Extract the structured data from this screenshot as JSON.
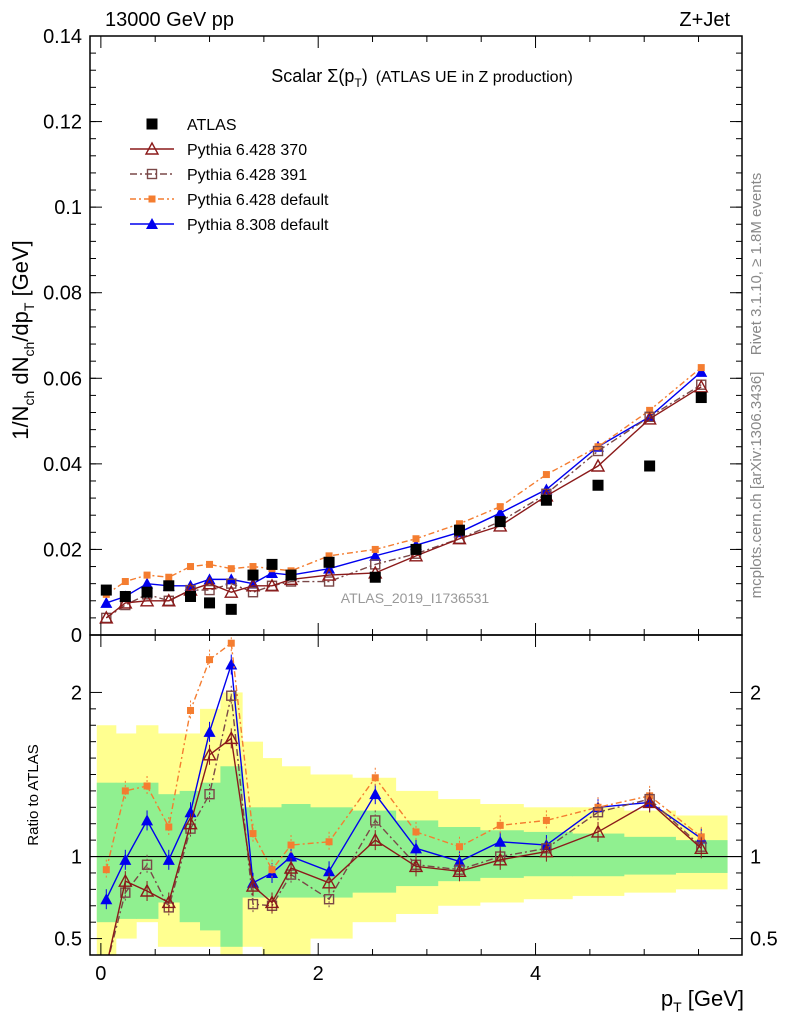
{
  "header": {
    "left": "13000 GeV pp",
    "right": "Z+Jet"
  },
  "side": {
    "rivet": "Rivet 3.1.10, ≥ 1.8M events",
    "mcplots": "mcplots.cern.ch [arXiv:1306.3436]"
  },
  "title": {
    "main": "Scalar Σ(p",
    "sub": "T",
    "close": ")",
    "rest": "(ATLAS UE in Z production)"
  },
  "watermark": "ATLAS_2019_I1736531",
  "colors": {
    "data": "#000000",
    "p370": "#8b1a1a",
    "p391": "#7a4848",
    "p6def": "#f47d30",
    "p8def": "#0000ee",
    "band_inner": "#90f090",
    "band_outer": "#ffff90"
  },
  "chart_data": {
    "type": "line",
    "x": [
      0.05,
      0.225,
      0.425,
      0.625,
      0.825,
      1.0,
      1.2,
      1.4,
      1.575,
      1.75,
      2.1,
      2.525,
      2.9,
      3.3,
      3.675,
      4.1,
      4.575,
      5.05,
      5.525
    ],
    "x_axis": {
      "label_main": "p",
      "label_sub": "T",
      "label_unit": " [GeV]",
      "range": [
        -0.1,
        5.9
      ],
      "major_ticks": [
        0,
        2,
        4
      ],
      "tick_labels": [
        "0",
        "2",
        "4"
      ]
    },
    "main_panel": {
      "y_label": "1/N_ch dN_ch/dp_T [GeV]",
      "y_label_parts": {
        "a": "1/N",
        "b": "ch",
        "c": " dN",
        "d": "ch",
        "e": "/dp",
        "f": "T",
        "g": " [GeV]"
      },
      "y_range": [
        0,
        0.14
      ],
      "y_ticks": [
        0,
        0.02,
        0.04,
        0.06,
        0.08,
        0.1,
        0.12,
        0.14
      ],
      "y_tick_labels": [
        "0",
        "0.02",
        "0.04",
        "0.06",
        "0.08",
        "0.1",
        "0.12",
        "0.14"
      ],
      "series": [
        {
          "name": "ATLAS",
          "key": "data",
          "marker": "square-filled",
          "values": [
            0.0105,
            0.009,
            0.01,
            0.0115,
            0.009,
            0.0075,
            0.006,
            0.014,
            0.0165,
            0.014,
            0.017,
            0.0135,
            0.02,
            0.0245,
            0.0265,
            0.0315,
            0.035,
            0.0395,
            0.0555
          ]
        },
        {
          "name": "Pythia 6.428 370",
          "key": "p370",
          "marker": "triangle-open",
          "dash": "",
          "values": [
            0.004,
            0.0075,
            0.008,
            0.008,
            0.0105,
            0.012,
            0.01,
            0.0115,
            0.0115,
            0.013,
            0.014,
            0.0145,
            0.0185,
            0.0225,
            0.0255,
            0.0325,
            0.0395,
            0.0505,
            0.058
          ]
        },
        {
          "name": "Pythia 6.428 391",
          "key": "p391",
          "marker": "square-open",
          "dash": "7,3,2,3",
          "values": [
            0.004,
            0.007,
            0.0095,
            0.008,
            0.0105,
            0.0105,
            0.012,
            0.01,
            0.0115,
            0.0125,
            0.0125,
            0.0165,
            0.019,
            0.0225,
            0.0265,
            0.033,
            0.043,
            0.051,
            0.0585
          ]
        },
        {
          "name": "Pythia 6.428 default",
          "key": "p6def",
          "marker": "square-small-filled",
          "dash": "6,3,2,3",
          "values": [
            0.0095,
            0.0125,
            0.014,
            0.0135,
            0.016,
            0.0165,
            0.0155,
            0.016,
            0.0155,
            0.015,
            0.0185,
            0.02,
            0.0225,
            0.026,
            0.03,
            0.0375,
            0.044,
            0.0525,
            0.0625
          ]
        },
        {
          "name": "Pythia 8.308 default",
          "key": "p8def",
          "marker": "triangle-filled",
          "dash": "",
          "values": [
            0.0075,
            0.009,
            0.012,
            0.0115,
            0.0115,
            0.013,
            0.013,
            0.012,
            0.0145,
            0.014,
            0.0155,
            0.0185,
            0.021,
            0.024,
            0.0285,
            0.034,
            0.044,
            0.051,
            0.0615
          ]
        }
      ]
    },
    "ratio_panel": {
      "y_label": "Ratio to ATLAS",
      "y_range": [
        0.4,
        2.35
      ],
      "y_ticks": [
        0.5,
        1,
        2
      ],
      "y_tick_labels": [
        "0.5",
        "1",
        "2"
      ],
      "band_inner": [
        [
          0.6,
          1.45
        ],
        [
          0.62,
          1.45
        ],
        [
          0.62,
          1.45
        ],
        [
          0.72,
          1.38
        ],
        [
          0.6,
          1.4
        ],
        [
          0.55,
          1.45
        ],
        [
          0.45,
          1.55
        ],
        [
          0.75,
          1.3
        ],
        [
          0.75,
          1.3
        ],
        [
          0.75,
          1.32
        ],
        [
          0.75,
          1.3
        ],
        [
          0.78,
          1.28
        ],
        [
          0.82,
          1.22
        ],
        [
          0.85,
          1.18
        ],
        [
          0.87,
          1.16
        ],
        [
          0.88,
          1.15
        ],
        [
          0.88,
          1.14
        ],
        [
          0.89,
          1.12
        ],
        [
          0.9,
          1.1
        ]
      ],
      "band_outer": [
        [
          0.4,
          1.8
        ],
        [
          0.5,
          1.75
        ],
        [
          0.6,
          1.8
        ],
        [
          0.45,
          1.75
        ],
        [
          0.45,
          1.75
        ],
        [
          0.45,
          1.9
        ],
        [
          0.4,
          2.0
        ],
        [
          0.45,
          1.7
        ],
        [
          0.4,
          1.6
        ],
        [
          0.4,
          1.55
        ],
        [
          0.5,
          1.5
        ],
        [
          0.6,
          1.48
        ],
        [
          0.65,
          1.4
        ],
        [
          0.7,
          1.35
        ],
        [
          0.72,
          1.32
        ],
        [
          0.74,
          1.3
        ],
        [
          0.76,
          1.3
        ],
        [
          0.78,
          1.28
        ],
        [
          0.8,
          1.25
        ]
      ],
      "series": [
        {
          "key": "p370",
          "values": [
            0.33,
            0.85,
            0.79,
            0.72,
            1.2,
            1.62,
            1.72,
            0.82,
            0.72,
            0.93,
            0.84,
            1.1,
            0.94,
            0.91,
            0.98,
            1.03,
            1.15,
            1.33,
            1.05
          ]
        },
        {
          "key": "p391",
          "values": [
            0.33,
            0.78,
            0.95,
            0.69,
            1.17,
            1.38,
            1.98,
            0.71,
            0.7,
            0.89,
            0.74,
            1.22,
            0.95,
            0.92,
            1.0,
            1.05,
            1.27,
            1.35,
            1.06
          ]
        },
        {
          "key": "p6def",
          "values": [
            0.92,
            1.4,
            1.43,
            1.18,
            1.89,
            2.2,
            2.3,
            1.14,
            0.92,
            1.07,
            1.09,
            1.48,
            1.15,
            1.06,
            1.19,
            1.22,
            1.3,
            1.37,
            1.12
          ]
        },
        {
          "key": "p8def",
          "values": [
            0.74,
            0.98,
            1.22,
            0.98,
            1.27,
            1.76,
            2.17,
            0.84,
            0.9,
            1.0,
            0.91,
            1.38,
            1.05,
            0.97,
            1.09,
            1.07,
            1.3,
            1.33,
            1.11
          ]
        }
      ]
    }
  }
}
